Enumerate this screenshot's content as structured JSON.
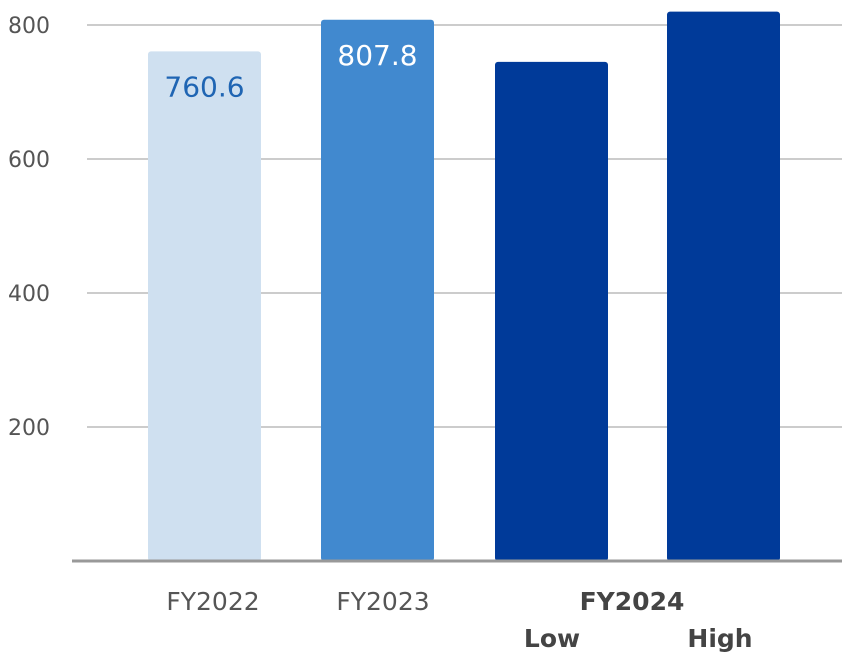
{
  "chart_data": {
    "type": "bar",
    "title": "",
    "xlabel": "",
    "ylabel": "",
    "ylim": [
      0,
      800
    ],
    "yticks": [
      200,
      400,
      600,
      800
    ],
    "grid": true,
    "categories": [
      "FY2022",
      "FY2023",
      "Low",
      "High"
    ],
    "group_labels": [
      {
        "label": "FY2022",
        "bold": false
      },
      {
        "label": "FY2023",
        "bold": false
      },
      {
        "label": "FY2024",
        "bold": true
      }
    ],
    "values": [
      760.6,
      807.8,
      745,
      820
    ],
    "data_labels": [
      "760.6",
      "807.8",
      "",
      ""
    ],
    "colors": [
      "#cfe0f0",
      "#4189cf",
      "#003a99",
      "#003a99"
    ],
    "label_colors": [
      "#1f65b3",
      "#ffffff",
      "",
      ""
    ]
  }
}
